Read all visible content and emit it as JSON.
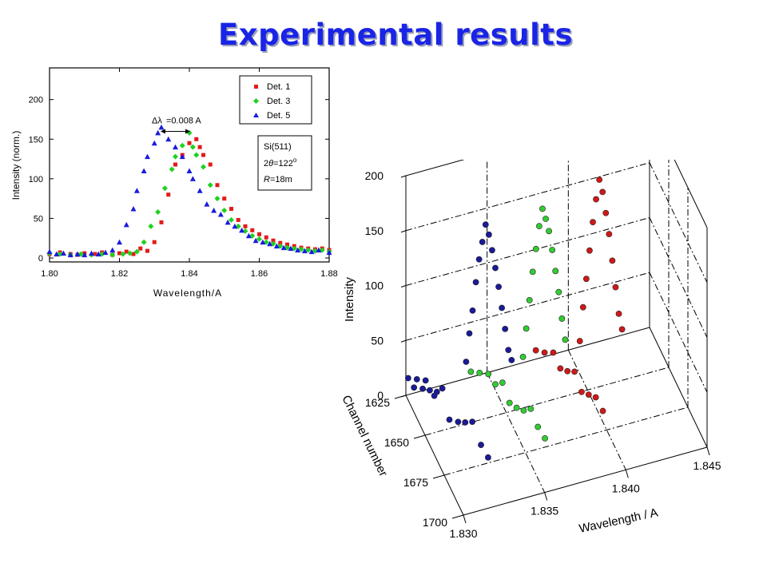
{
  "slide": {
    "title": "Experimental results"
  },
  "colors": {
    "title": "#1a24e6",
    "det1": "#e21b1b",
    "det3": "#1fd11f",
    "det5": "#1a1ae0",
    "red3d": "#d01818",
    "green3d": "#33cc33",
    "blue3d": "#1a1a9a"
  },
  "chart_data": [
    {
      "type": "scatter",
      "xlabel": "Wavelength/A",
      "ylabel": "Intensity (norm.)",
      "xlim": [
        1.8,
        1.88
      ],
      "ylim": [
        -5,
        240
      ],
      "xticks": [
        "1.80",
        "1.82",
        "1.84",
        "1.86",
        "1.88"
      ],
      "yticks": [
        "0",
        "50",
        "100",
        "150",
        "200"
      ],
      "annotation": {
        "symbol": "Δλ",
        "text": "=0.008 A",
        "x_from": 1.832,
        "x_to": 1.84,
        "y": 172
      },
      "legend_position": "top-right",
      "info_box": {
        "line1": "Si(511)",
        "line2_prefix": "2",
        "line2_theta": "θ",
        "line2_value": "=122",
        "line2_deg": "o",
        "line3_r": "R",
        "line3_value": "=18m"
      },
      "series": [
        {
          "name": "Det. 1",
          "marker": "square",
          "color": "#e21b1b",
          "points": [
            [
              1.8,
              5
            ],
            [
              1.803,
              7
            ],
            [
              1.806,
              5
            ],
            [
              1.808,
              4
            ],
            [
              1.81,
              6
            ],
            [
              1.813,
              5
            ],
            [
              1.815,
              7
            ],
            [
              1.818,
              4
            ],
            [
              1.82,
              6
            ],
            [
              1.822,
              8
            ],
            [
              1.824,
              5
            ],
            [
              1.826,
              12
            ],
            [
              1.828,
              9
            ],
            [
              1.83,
              20
            ],
            [
              1.832,
              45
            ],
            [
              1.834,
              80
            ],
            [
              1.836,
              118
            ],
            [
              1.838,
              130
            ],
            [
              1.84,
              145
            ],
            [
              1.842,
              150
            ],
            [
              1.843,
              140
            ],
            [
              1.844,
              130
            ],
            [
              1.846,
              118
            ],
            [
              1.848,
              92
            ],
            [
              1.85,
              75
            ],
            [
              1.852,
              62
            ],
            [
              1.854,
              48
            ],
            [
              1.856,
              40
            ],
            [
              1.858,
              35
            ],
            [
              1.86,
              30
            ],
            [
              1.862,
              26
            ],
            [
              1.864,
              22
            ],
            [
              1.866,
              19
            ],
            [
              1.868,
              17
            ],
            [
              1.87,
              15
            ],
            [
              1.872,
              13
            ],
            [
              1.874,
              12
            ],
            [
              1.876,
              11
            ],
            [
              1.878,
              12
            ],
            [
              1.88,
              10
            ]
          ]
        },
        {
          "name": "Det. 3",
          "marker": "diamond",
          "color": "#1fd11f",
          "points": [
            [
              1.8,
              6
            ],
            [
              1.803,
              5
            ],
            [
              1.806,
              4
            ],
            [
              1.809,
              5
            ],
            [
              1.812,
              4
            ],
            [
              1.815,
              5
            ],
            [
              1.818,
              4
            ],
            [
              1.821,
              5
            ],
            [
              1.823,
              6
            ],
            [
              1.825,
              8
            ],
            [
              1.827,
              20
            ],
            [
              1.829,
              40
            ],
            [
              1.831,
              58
            ],
            [
              1.833,
              88
            ],
            [
              1.835,
              112
            ],
            [
              1.836,
              128
            ],
            [
              1.838,
              142
            ],
            [
              1.84,
              158
            ],
            [
              1.841,
              140
            ],
            [
              1.842,
              130
            ],
            [
              1.844,
              115
            ],
            [
              1.846,
              92
            ],
            [
              1.848,
              75
            ],
            [
              1.85,
              60
            ],
            [
              1.852,
              48
            ],
            [
              1.854,
              40
            ],
            [
              1.856,
              34
            ],
            [
              1.858,
              28
            ],
            [
              1.86,
              24
            ],
            [
              1.862,
              20
            ],
            [
              1.864,
              18
            ],
            [
              1.866,
              15
            ],
            [
              1.868,
              13
            ],
            [
              1.87,
              12
            ],
            [
              1.872,
              11
            ],
            [
              1.874,
              10
            ],
            [
              1.876,
              9
            ],
            [
              1.878,
              10
            ],
            [
              1.88,
              8
            ]
          ]
        },
        {
          "name": "Det. 5",
          "marker": "triangle",
          "color": "#1a1ae0",
          "points": [
            [
              1.8,
              8
            ],
            [
              1.802,
              5
            ],
            [
              1.804,
              6
            ],
            [
              1.806,
              4
            ],
            [
              1.808,
              5
            ],
            [
              1.81,
              4
            ],
            [
              1.812,
              6
            ],
            [
              1.814,
              5
            ],
            [
              1.816,
              7
            ],
            [
              1.818,
              10
            ],
            [
              1.82,
              20
            ],
            [
              1.822,
              42
            ],
            [
              1.824,
              62
            ],
            [
              1.825,
              85
            ],
            [
              1.827,
              110
            ],
            [
              1.828,
              128
            ],
            [
              1.83,
              145
            ],
            [
              1.831,
              158
            ],
            [
              1.832,
              165
            ],
            [
              1.834,
              150
            ],
            [
              1.836,
              140
            ],
            [
              1.838,
              128
            ],
            [
              1.84,
              110
            ],
            [
              1.841,
              100
            ],
            [
              1.843,
              85
            ],
            [
              1.845,
              68
            ],
            [
              1.847,
              60
            ],
            [
              1.849,
              55
            ],
            [
              1.851,
              45
            ],
            [
              1.853,
              40
            ],
            [
              1.855,
              35
            ],
            [
              1.857,
              28
            ],
            [
              1.859,
              22
            ],
            [
              1.861,
              20
            ],
            [
              1.863,
              18
            ],
            [
              1.865,
              15
            ],
            [
              1.867,
              13
            ],
            [
              1.869,
              12
            ],
            [
              1.871,
              10
            ],
            [
              1.873,
              9
            ],
            [
              1.875,
              8
            ],
            [
              1.877,
              10
            ],
            [
              1.88,
              7
            ]
          ]
        }
      ]
    },
    {
      "type": "scatter3d",
      "xlabel": "Wavelength / A",
      "ylabel": "Channel number",
      "zlabel": "Intensity",
      "xlim": [
        1.83,
        1.845
      ],
      "ylim": [
        1625,
        1700
      ],
      "zlim": [
        0,
        200
      ],
      "xticks": [
        "1.830",
        "1.835",
        "1.840",
        "1.845"
      ],
      "yticks": [
        "1625",
        "1650",
        "1675",
        "1700"
      ],
      "zticks": [
        "0",
        "50",
        "100",
        "150",
        "200"
      ],
      "series": [
        {
          "color": "#1a1a9a",
          "channel": 1640,
          "points": [
            [
              1.8305,
              1625,
              5
            ],
            [
              1.8308,
              1630,
              10
            ],
            [
              1.831,
              1635,
              15
            ],
            [
              1.8312,
              1640,
              20
            ],
            [
              1.8313,
              1645,
              30
            ],
            [
              1.8315,
              1650,
              8
            ],
            [
              1.8318,
              1655,
              12
            ],
            [
              1.832,
              1660,
              18
            ],
            [
              1.8322,
              1665,
              25
            ],
            [
              1.8325,
              1670,
              10
            ],
            [
              1.8327,
              1675,
              5
            ],
            [
              1.83,
              1628,
              20
            ],
            [
              1.8303,
              1633,
              25
            ],
            [
              1.8306,
              1638,
              30
            ],
            [
              1.8309,
              1643,
              22
            ]
          ],
          "peak": [
            [
              1.833,
              1640,
              40
            ],
            [
              1.8332,
              1640,
              65
            ],
            [
              1.8334,
              1640,
              85
            ],
            [
              1.8336,
              1640,
              110
            ],
            [
              1.8338,
              1640,
              130
            ],
            [
              1.834,
              1640,
              145
            ],
            [
              1.8342,
              1640,
              160
            ],
            [
              1.8344,
              1640,
              150
            ],
            [
              1.8346,
              1640,
              135
            ],
            [
              1.8348,
              1640,
              118
            ],
            [
              1.835,
              1640,
              100
            ],
            [
              1.8352,
              1640,
              80
            ],
            [
              1.8354,
              1640,
              60
            ],
            [
              1.8356,
              1640,
              40
            ],
            [
              1.8358,
              1640,
              30
            ]
          ]
        },
        {
          "color": "#33cc33",
          "channel": 1640,
          "points": [
            [
              1.834,
              1625,
              5
            ],
            [
              1.8343,
              1630,
              10
            ],
            [
              1.8346,
              1635,
              15
            ],
            [
              1.8348,
              1640,
              12
            ],
            [
              1.835,
              1645,
              20
            ],
            [
              1.8352,
              1650,
              8
            ],
            [
              1.8354,
              1655,
              10
            ],
            [
              1.8356,
              1660,
              14
            ],
            [
              1.8358,
              1665,
              22
            ],
            [
              1.836,
              1670,
              12
            ],
            [
              1.8362,
              1675,
              8
            ]
          ],
          "peak": [
            [
              1.8365,
              1640,
              30
            ],
            [
              1.8367,
              1640,
              55
            ],
            [
              1.8369,
              1640,
              80
            ],
            [
              1.8371,
              1640,
              105
            ],
            [
              1.8373,
              1640,
              125
            ],
            [
              1.8375,
              1640,
              145
            ],
            [
              1.8377,
              1640,
              160
            ],
            [
              1.8379,
              1640,
              150
            ],
            [
              1.8381,
              1640,
              138
            ],
            [
              1.8383,
              1640,
              120
            ],
            [
              1.8385,
              1640,
              100
            ],
            [
              1.8387,
              1640,
              80
            ],
            [
              1.8389,
              1640,
              55
            ],
            [
              1.8391,
              1640,
              35
            ]
          ]
        },
        {
          "color": "#d01818",
          "channel": 1640,
          "points": [
            [
              1.838,
              1625,
              8
            ],
            [
              1.8383,
              1630,
              12
            ],
            [
              1.8386,
              1635,
              18
            ],
            [
              1.8388,
              1640,
              10
            ],
            [
              1.839,
              1645,
              14
            ],
            [
              1.8392,
              1650,
              20
            ],
            [
              1.8394,
              1655,
              8
            ],
            [
              1.8396,
              1660,
              12
            ],
            [
              1.8398,
              1665,
              16
            ],
            [
              1.84,
              1670,
              10
            ]
          ],
          "peak": [
            [
              1.84,
              1640,
              30
            ],
            [
              1.8402,
              1640,
              60
            ],
            [
              1.8404,
              1640,
              85
            ],
            [
              1.8406,
              1640,
              110
            ],
            [
              1.8408,
              1640,
              135
            ],
            [
              1.841,
              1640,
              155
            ],
            [
              1.8412,
              1640,
              172
            ],
            [
              1.8414,
              1640,
              160
            ],
            [
              1.8416,
              1640,
              140
            ],
            [
              1.8418,
              1640,
              120
            ],
            [
              1.842,
              1640,
              95
            ],
            [
              1.8422,
              1640,
              70
            ],
            [
              1.8424,
              1640,
              45
            ],
            [
              1.8426,
              1640,
              30
            ]
          ]
        }
      ]
    }
  ]
}
